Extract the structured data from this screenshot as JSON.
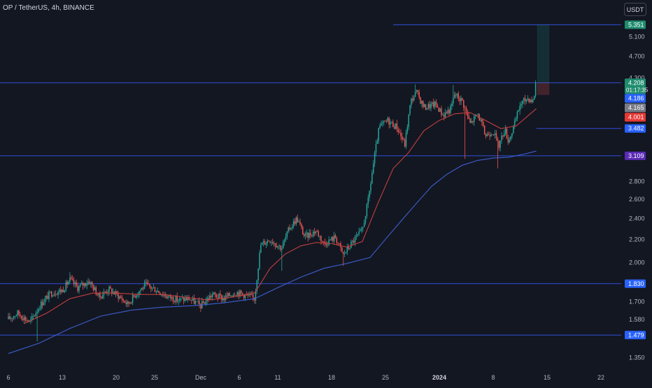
{
  "header": {
    "symbol": "OP / TetherUS, 4h, BINANCE",
    "currency_button": "USDT"
  },
  "colors": {
    "background": "#131722",
    "up": "#26a69a",
    "down": "#ef5350",
    "ma_fast": "#c2403d",
    "ma_slow": "#3d5fd0",
    "hline": "#2f4fd8",
    "axis_text": "#b2b5be"
  },
  "chart_data": {
    "type": "candlestick",
    "ylim": [
      1.29,
      5.55
    ],
    "y_ticks": [
      {
        "value": 5.1,
        "label": "5.100"
      },
      {
        "value": 4.7,
        "label": "4.700"
      },
      {
        "value": 4.3,
        "label": "4.300"
      },
      {
        "value": 2.8,
        "label": "2.800"
      },
      {
        "value": 2.6,
        "label": "2.600"
      },
      {
        "value": 2.4,
        "label": "2.400"
      },
      {
        "value": 2.2,
        "label": "2.200"
      },
      {
        "value": 2.0,
        "label": "2.000"
      },
      {
        "value": 1.7,
        "label": "1.700"
      },
      {
        "value": 1.58,
        "label": "1.580"
      },
      {
        "value": 1.35,
        "label": "1.350"
      }
    ],
    "x_ticks": [
      {
        "t": 0,
        "label": "6"
      },
      {
        "t": 7,
        "label": "13"
      },
      {
        "t": 14,
        "label": "20"
      },
      {
        "t": 19,
        "label": "25"
      },
      {
        "t": 25,
        "label": "Dec"
      },
      {
        "t": 30,
        "label": "6"
      },
      {
        "t": 35,
        "label": "11"
      },
      {
        "t": 42,
        "label": "18"
      },
      {
        "t": 49,
        "label": "25"
      },
      {
        "t": 56,
        "label": "2024"
      },
      {
        "t": 63,
        "label": "8"
      },
      {
        "t": 70,
        "label": "15"
      },
      {
        "t": 77,
        "label": "22"
      }
    ],
    "price_path": [
      {
        "t": 0,
        "v": 1.58
      },
      {
        "t": 1.2,
        "v": 1.62
      },
      {
        "t": 2.8,
        "v": 1.56
      },
      {
        "t": 4.2,
        "v": 1.68
      },
      {
        "t": 5.5,
        "v": 1.76
      },
      {
        "t": 7,
        "v": 1.78
      },
      {
        "t": 8,
        "v": 1.86
      },
      {
        "t": 9,
        "v": 1.8
      },
      {
        "t": 10.5,
        "v": 1.85
      },
      {
        "t": 11.8,
        "v": 1.73
      },
      {
        "t": 13,
        "v": 1.79
      },
      {
        "t": 14.3,
        "v": 1.74
      },
      {
        "t": 15.5,
        "v": 1.68
      },
      {
        "t": 16.5,
        "v": 1.75
      },
      {
        "t": 17.8,
        "v": 1.82
      },
      {
        "t": 19,
        "v": 1.79
      },
      {
        "t": 20.5,
        "v": 1.74
      },
      {
        "t": 22,
        "v": 1.71
      },
      {
        "t": 23.5,
        "v": 1.72
      },
      {
        "t": 25,
        "v": 1.67
      },
      {
        "t": 26.5,
        "v": 1.75
      },
      {
        "t": 28,
        "v": 1.72
      },
      {
        "t": 29.5,
        "v": 1.77
      },
      {
        "t": 31,
        "v": 1.74
      },
      {
        "t": 32,
        "v": 1.72
      },
      {
        "t": 32.8,
        "v": 2.15
      },
      {
        "t": 34,
        "v": 2.2
      },
      {
        "t": 35.5,
        "v": 2.12
      },
      {
        "t": 36.5,
        "v": 2.3
      },
      {
        "t": 37.5,
        "v": 2.4
      },
      {
        "t": 38.5,
        "v": 2.22
      },
      {
        "t": 40,
        "v": 2.28
      },
      {
        "t": 41,
        "v": 2.16
      },
      {
        "t": 42.5,
        "v": 2.22
      },
      {
        "t": 43.5,
        "v": 2.06
      },
      {
        "t": 45,
        "v": 2.2
      },
      {
        "t": 46,
        "v": 2.28
      },
      {
        "t": 46.8,
        "v": 2.6
      },
      {
        "t": 47.5,
        "v": 3.05
      },
      {
        "t": 48.2,
        "v": 3.5
      },
      {
        "t": 49.3,
        "v": 3.6
      },
      {
        "t": 50.5,
        "v": 3.5
      },
      {
        "t": 51.5,
        "v": 3.25
      },
      {
        "t": 52.3,
        "v": 3.9
      },
      {
        "t": 53,
        "v": 4.05
      },
      {
        "t": 54,
        "v": 3.8
      },
      {
        "t": 55.5,
        "v": 3.85
      },
      {
        "t": 56.5,
        "v": 3.68
      },
      {
        "t": 57.5,
        "v": 3.78
      },
      {
        "t": 58,
        "v": 4.02
      },
      {
        "t": 59,
        "v": 3.9
      },
      {
        "t": 60,
        "v": 3.55
      },
      {
        "t": 61,
        "v": 3.7
      },
      {
        "t": 62,
        "v": 3.38
      },
      {
        "t": 63,
        "v": 3.45
      },
      {
        "t": 63.7,
        "v": 3.23
      },
      {
        "t": 64.5,
        "v": 3.48
      },
      {
        "t": 65,
        "v": 3.3
      },
      {
        "t": 65.8,
        "v": 3.55
      },
      {
        "t": 66.5,
        "v": 3.85
      },
      {
        "t": 67.5,
        "v": 3.95
      },
      {
        "t": 68.2,
        "v": 3.9
      },
      {
        "t": 68.6,
        "v": 4.208
      }
    ],
    "wicks": [
      {
        "t": 3.8,
        "low": 1.44
      },
      {
        "t": 8,
        "high": 1.92
      },
      {
        "t": 35.5,
        "low": 1.93
      },
      {
        "t": 43.5,
        "low": 1.97
      },
      {
        "t": 52.8,
        "high": 4.18
      },
      {
        "t": 57.8,
        "high": 4.17
      },
      {
        "t": 59.4,
        "low": 3.07
      },
      {
        "t": 63.5,
        "low": 2.95
      }
    ],
    "ma_fast": [
      {
        "t": 2,
        "v": 1.55
      },
      {
        "t": 5,
        "v": 1.62
      },
      {
        "t": 8,
        "v": 1.72
      },
      {
        "t": 11,
        "v": 1.76
      },
      {
        "t": 14,
        "v": 1.76
      },
      {
        "t": 17,
        "v": 1.75
      },
      {
        "t": 20,
        "v": 1.75
      },
      {
        "t": 23,
        "v": 1.73
      },
      {
        "t": 26,
        "v": 1.71
      },
      {
        "t": 29,
        "v": 1.73
      },
      {
        "t": 32,
        "v": 1.76
      },
      {
        "t": 34,
        "v": 1.95
      },
      {
        "t": 36,
        "v": 2.07
      },
      {
        "t": 38,
        "v": 2.14
      },
      {
        "t": 40,
        "v": 2.17
      },
      {
        "t": 42,
        "v": 2.16
      },
      {
        "t": 44,
        "v": 2.13
      },
      {
        "t": 46,
        "v": 2.18
      },
      {
        "t": 48,
        "v": 2.55
      },
      {
        "t": 50,
        "v": 2.95
      },
      {
        "t": 52,
        "v": 3.15
      },
      {
        "t": 54,
        "v": 3.45
      },
      {
        "t": 56,
        "v": 3.6
      },
      {
        "t": 58,
        "v": 3.7
      },
      {
        "t": 60,
        "v": 3.72
      },
      {
        "t": 62,
        "v": 3.6
      },
      {
        "t": 64,
        "v": 3.48
      },
      {
        "t": 66,
        "v": 3.52
      },
      {
        "t": 68.6,
        "v": 3.78
      }
    ],
    "ma_slow": [
      {
        "t": 0,
        "v": 1.37
      },
      {
        "t": 4,
        "v": 1.43
      },
      {
        "t": 8,
        "v": 1.52
      },
      {
        "t": 12,
        "v": 1.6
      },
      {
        "t": 16,
        "v": 1.64
      },
      {
        "t": 20,
        "v": 1.66
      },
      {
        "t": 24,
        "v": 1.67
      },
      {
        "t": 28,
        "v": 1.69
      },
      {
        "t": 32,
        "v": 1.72
      },
      {
        "t": 35,
        "v": 1.8
      },
      {
        "t": 38,
        "v": 1.88
      },
      {
        "t": 41,
        "v": 1.95
      },
      {
        "t": 44,
        "v": 1.99
      },
      {
        "t": 47,
        "v": 2.04
      },
      {
        "t": 49,
        "v": 2.2
      },
      {
        "t": 51,
        "v": 2.37
      },
      {
        "t": 53,
        "v": 2.55
      },
      {
        "t": 55,
        "v": 2.74
      },
      {
        "t": 57,
        "v": 2.88
      },
      {
        "t": 59,
        "v": 2.99
      },
      {
        "t": 61,
        "v": 3.05
      },
      {
        "t": 63,
        "v": 3.08
      },
      {
        "t": 65,
        "v": 3.09
      },
      {
        "t": 67,
        "v": 3.13
      },
      {
        "t": 68.6,
        "v": 3.17
      }
    ],
    "horizontal_levels": [
      {
        "value": 5.351,
        "label": "5.351",
        "from_t": 50,
        "color": "#2f4fd8",
        "label_bg": "#1f8c6e"
      },
      {
        "value": 4.208,
        "label": "4.208",
        "from_t": -1,
        "color": "#2f4fd8",
        "label_bg": "#1f8c6e"
      },
      {
        "value": 3.482,
        "label": "3.482",
        "from_t": 68.6,
        "color": "#2f4fd8",
        "label_bg": "#2962ff"
      },
      {
        "value": 3.109,
        "label": "3.109",
        "from_t": -1,
        "color": "#2f4fd8",
        "label_bg": "#5b2bb5"
      },
      {
        "value": 1.83,
        "label": "1.830",
        "from_t": -1,
        "color": "#2f4fd8",
        "label_bg": "#2962ff"
      },
      {
        "value": 1.479,
        "label": "1.479",
        "from_t": -1,
        "color": "#2f4fd8",
        "label_bg": "#2962ff"
      }
    ],
    "price_tags": [
      {
        "value": 4.208,
        "label": "4.208",
        "sublabel": "01:17:35",
        "bg": "#1f8c6e",
        "fg": "#ffffff"
      },
      {
        "value": 4.186,
        "label": "4.186",
        "bg": "#2962ff",
        "fg": "#ffffff",
        "row": 1
      },
      {
        "value": 4.165,
        "label": "4.165",
        "bg": "#787b86",
        "fg": "#ffffff",
        "row": 2
      },
      {
        "value": 4.001,
        "label": "4.001",
        "bg": "#e53935",
        "fg": "#ffffff",
        "row": 3
      }
    ],
    "position_box": {
      "t_from": 68.7,
      "t_to": 70.3,
      "entry": 4.208,
      "target": 5.351,
      "stop": 4.001
    }
  }
}
